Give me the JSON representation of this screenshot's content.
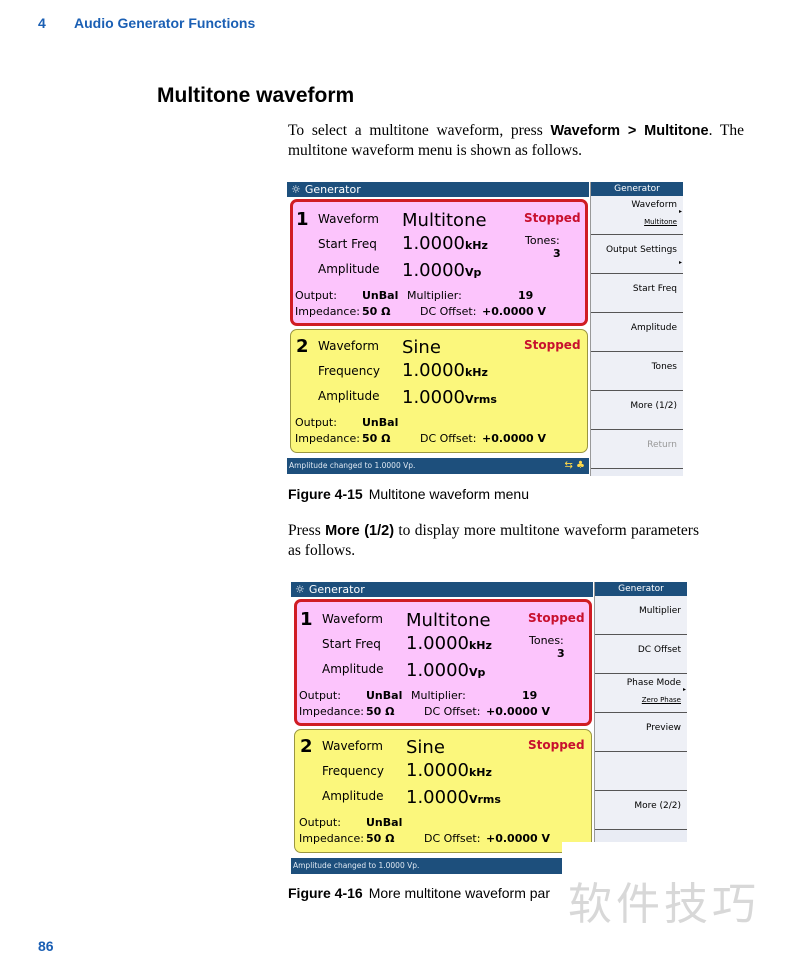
{
  "header": {
    "chapter": "4",
    "title": "Audio Generator Functions"
  },
  "section_title": "Multitone waveform",
  "para1": {
    "pre": "To select a multitone waveform, press ",
    "bold": "Waveform > Multitone",
    "post": ". The multitone waveform menu is shown as follows."
  },
  "para2": {
    "pre": "Press ",
    "bold": "More (1/2)",
    "post": " to display more multitone waveform parameters as follows."
  },
  "figures": [
    {
      "number": "Figure 4-15",
      "caption": "Multitone waveform menu",
      "screen": {
        "title": "Generator",
        "sidebar_title": "Generator",
        "ch1": {
          "num": "1",
          "r1_label": "Waveform",
          "r1_value": "Multitone",
          "status": "Stopped",
          "r2_label": "Start Freq",
          "r2_value": "1.0000",
          "r2_unit": "kHz",
          "r3_label": "Amplitude",
          "r3_value": "1.0000",
          "r3_unit": "Vp",
          "tones_label": "Tones:",
          "tones_value": "3",
          "output_label": "Output:",
          "output_value": "UnBal",
          "mult_label": "Multiplier:",
          "mult_value": "19",
          "imp_label": "Impedance:",
          "imp_value": "50 Ω",
          "dc_label": "DC Offset:",
          "dc_value": "+0.0000 V"
        },
        "ch2": {
          "num": "2",
          "r1_label": "Waveform",
          "r1_value": "Sine",
          "status": "Stopped",
          "r2_label": "Frequency",
          "r2_value": "1.0000",
          "r2_unit": "kHz",
          "r3_label": "Amplitude",
          "r3_value": "1.0000",
          "r3_unit": "Vrms",
          "output_label": "Output:",
          "output_value": "UnBal",
          "imp_label": "Impedance:",
          "imp_value": "50 Ω",
          "dc_label": "DC Offset:",
          "dc_value": "+0.0000 V"
        },
        "status_message": "Amplitude changed to 1.0000 Vp.",
        "softkeys": [
          {
            "label": "Waveform",
            "sub": "Multitone",
            "arrow": true
          },
          {
            "label": "Output Settings",
            "arrow": true
          },
          {
            "label": "Start Freq"
          },
          {
            "label": "Amplitude"
          },
          {
            "label": "Tones"
          },
          {
            "label": "More (1/2)"
          },
          {
            "label": "Return",
            "disabled": true
          }
        ]
      }
    },
    {
      "number": "Figure 4-16",
      "caption": "More multitone waveform par",
      "screen": {
        "title": "Generator",
        "sidebar_title": "Generator",
        "ch1": {
          "num": "1",
          "r1_label": "Waveform",
          "r1_value": "Multitone",
          "status": "Stopped",
          "r2_label": "Start Freq",
          "r2_value": "1.0000",
          "r2_unit": "kHz",
          "r3_label": "Amplitude",
          "r3_value": "1.0000",
          "r3_unit": "Vp",
          "tones_label": "Tones:",
          "tones_value": "3",
          "output_label": "Output:",
          "output_value": "UnBal",
          "mult_label": "Multiplier:",
          "mult_value": "19",
          "imp_label": "Impedance:",
          "imp_value": "50 Ω",
          "dc_label": "DC Offset:",
          "dc_value": "+0.0000 V"
        },
        "ch2": {
          "num": "2",
          "r1_label": "Waveform",
          "r1_value": "Sine",
          "status": "Stopped",
          "r2_label": "Frequency",
          "r2_value": "1.0000",
          "r2_unit": "kHz",
          "r3_label": "Amplitude",
          "r3_value": "1.0000",
          "r3_unit": "Vrms",
          "output_label": "Output:",
          "output_value": "UnBal",
          "imp_label": "Impedance:",
          "imp_value": "50 Ω",
          "dc_label": "DC Offset:",
          "dc_value": "+0.0000 V"
        },
        "status_message": "Amplitude changed to 1.0000 Vp.",
        "softkeys": [
          {
            "label": "Multiplier"
          },
          {
            "label": "DC Offset"
          },
          {
            "label": "Phase Mode",
            "sub": "Zero Phase",
            "arrow": true
          },
          {
            "label": "Preview"
          },
          {
            "label": ""
          },
          {
            "label": "More (2/2)"
          }
        ]
      }
    }
  ],
  "page_number": "86",
  "watermark": "软件技巧",
  "colors": {
    "brand_blue": "#1a5fb4",
    "title_bar": "#1d4f7c",
    "ch1_bg": "#fcc4fc",
    "ch1_border": "#d01c24",
    "ch2_bg": "#fbf77c",
    "status_red": "#c8102e"
  }
}
